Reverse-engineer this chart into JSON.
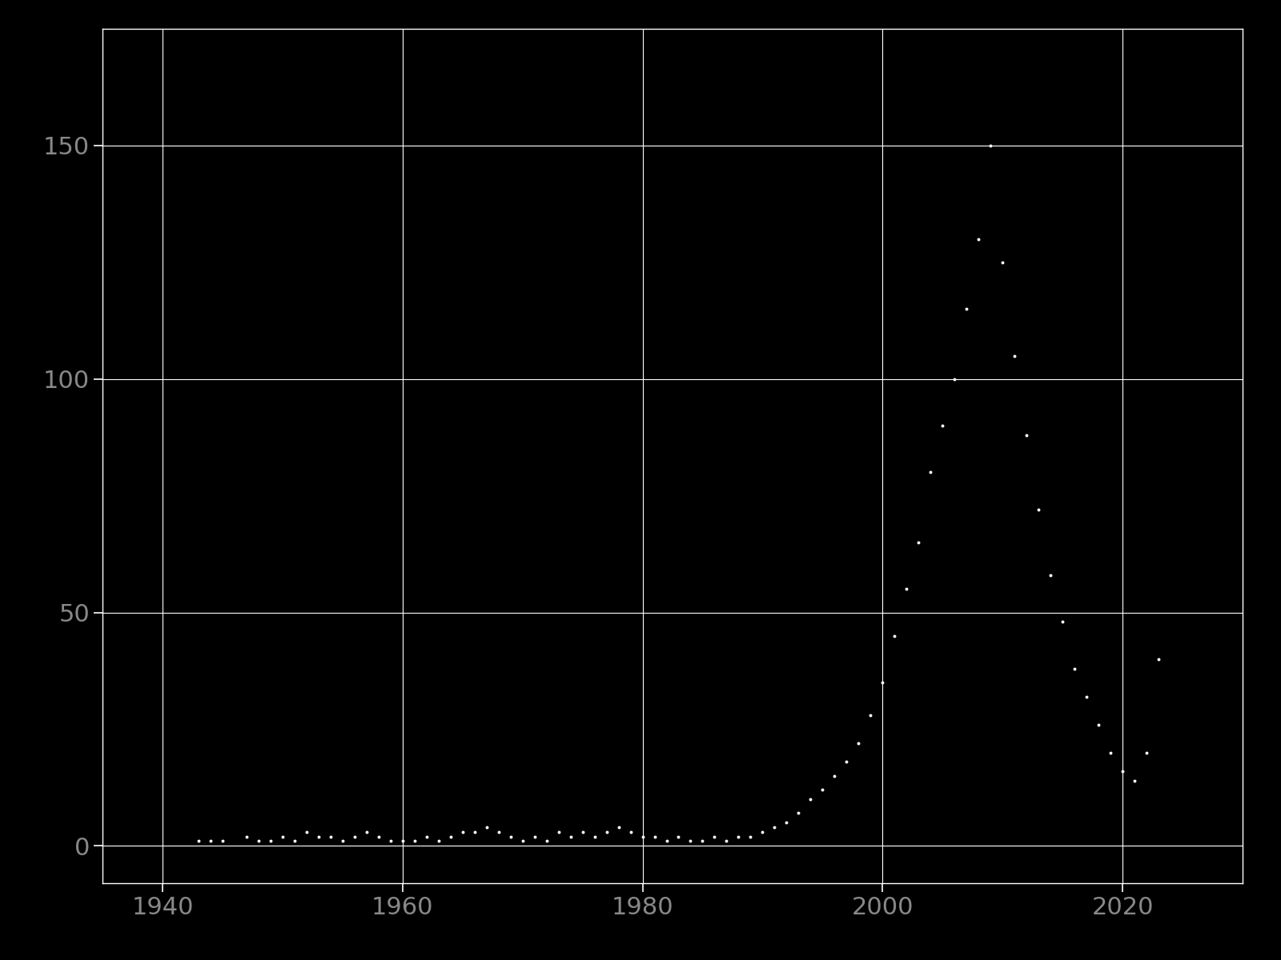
{
  "years": [
    1943,
    1944,
    1945,
    1947,
    1948,
    1949,
    1950,
    1951,
    1952,
    1953,
    1954,
    1955,
    1956,
    1957,
    1958,
    1959,
    1960,
    1961,
    1962,
    1963,
    1964,
    1965,
    1966,
    1967,
    1968,
    1969,
    1970,
    1971,
    1972,
    1973,
    1974,
    1975,
    1976,
    1977,
    1978,
    1979,
    1980,
    1981,
    1982,
    1983,
    1984,
    1985,
    1986,
    1987,
    1988,
    1989,
    1990,
    1991,
    1992,
    1993,
    1994,
    1995,
    1996,
    1997,
    1998,
    1999,
    2000,
    2001,
    2002,
    2003,
    2004,
    2005,
    2006,
    2007,
    2008,
    2009,
    2010,
    2011,
    2012,
    2013,
    2014,
    2015,
    2016,
    2017,
    2018,
    2019,
    2020,
    2021,
    2022,
    2023
  ],
  "counts": [
    1,
    1,
    1,
    2,
    1,
    1,
    2,
    1,
    3,
    2,
    2,
    1,
    2,
    3,
    2,
    1,
    1,
    1,
    2,
    1,
    2,
    3,
    3,
    4,
    3,
    2,
    1,
    2,
    1,
    3,
    2,
    3,
    2,
    3,
    4,
    3,
    2,
    2,
    1,
    2,
    1,
    1,
    2,
    1,
    2,
    2,
    3,
    4,
    5,
    7,
    10,
    12,
    15,
    18,
    22,
    28,
    35,
    45,
    55,
    65,
    80,
    90,
    100,
    115,
    130,
    150,
    125,
    105,
    88,
    72,
    58,
    48,
    38,
    32,
    26,
    20,
    16,
    14,
    20,
    40
  ],
  "background_color": "#000000",
  "grid_color": "#ffffff",
  "scatter_color": "#ffffff",
  "tick_color": "#888888",
  "xlim": [
    1935,
    2030
  ],
  "ylim": [
    -8,
    175
  ],
  "xticks": [
    1940,
    1960,
    1980,
    2000,
    2020
  ],
  "yticks": [
    0,
    50,
    100,
    150
  ],
  "marker_size": 8,
  "figwidth": 16.0,
  "figheight": 12.0,
  "dpi": 100
}
